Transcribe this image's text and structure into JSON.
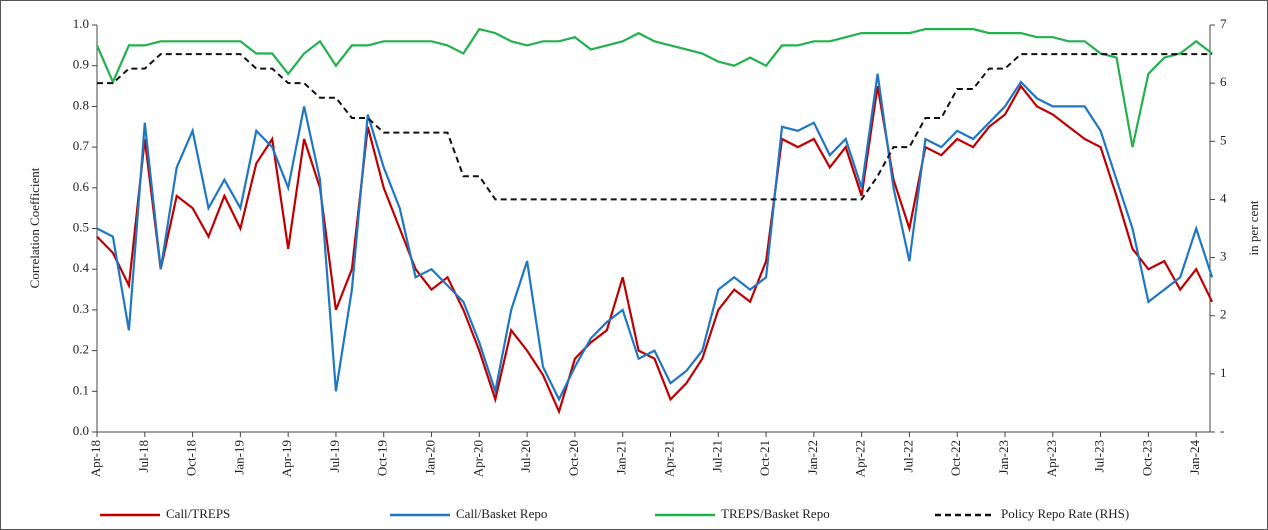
{
  "chart_data": {
    "type": "line",
    "categories": [
      "Apr-18",
      null,
      null,
      "Jul-18",
      null,
      null,
      "Oct-18",
      null,
      null,
      "Jan-19",
      null,
      null,
      "Apr-19",
      null,
      null,
      "Jul-19",
      null,
      null,
      "Oct-19",
      null,
      null,
      "Jan-20",
      null,
      null,
      "Apr-20",
      null,
      null,
      "Jul-20",
      null,
      null,
      "Oct-20",
      null,
      null,
      "Jan-21",
      null,
      null,
      "Apr-21",
      null,
      null,
      "Jul-21",
      null,
      null,
      "Oct-21",
      null,
      null,
      "Jan-22",
      null,
      null,
      "Apr-22",
      null,
      null,
      "Jul-22",
      null,
      null,
      "Oct-22",
      null,
      null,
      "Jan-23",
      null,
      null,
      "Apr-23",
      null,
      null,
      "Jul-23",
      null,
      null,
      "Oct-23",
      null,
      null,
      "Jan-24",
      null
    ],
    "series": [
      {
        "name": "Call/TREPS",
        "color": "#c00000",
        "values": [
          0.48,
          0.44,
          0.36,
          0.72,
          0.4,
          0.58,
          0.55,
          0.48,
          0.58,
          0.5,
          0.66,
          0.72,
          0.45,
          0.72,
          0.6,
          0.3,
          0.4,
          0.75,
          0.6,
          0.5,
          0.4,
          0.35,
          0.38,
          0.3,
          0.2,
          0.08,
          0.25,
          0.2,
          0.14,
          0.05,
          0.18,
          0.22,
          0.25,
          0.38,
          0.2,
          0.18,
          0.08,
          0.12,
          0.18,
          0.3,
          0.35,
          0.32,
          0.42,
          0.72,
          0.7,
          0.72,
          0.65,
          0.7,
          0.58,
          0.85,
          0.62,
          0.5,
          0.7,
          0.68,
          0.72,
          0.7,
          0.75,
          0.78,
          0.85,
          0.8,
          0.78,
          0.75,
          0.72,
          0.7,
          0.58,
          0.45,
          0.4,
          0.42,
          0.35,
          0.4,
          0.32
        ]
      },
      {
        "name": "Call/Basket Repo",
        "color": "#1f77c4",
        "values": [
          0.5,
          0.48,
          0.25,
          0.76,
          0.4,
          0.65,
          0.74,
          0.55,
          0.62,
          0.55,
          0.74,
          0.7,
          0.6,
          0.8,
          0.62,
          0.1,
          0.35,
          0.78,
          0.65,
          0.55,
          0.38,
          0.4,
          0.36,
          0.32,
          0.22,
          0.1,
          0.3,
          0.42,
          0.16,
          0.08,
          0.16,
          0.23,
          0.27,
          0.3,
          0.18,
          0.2,
          0.12,
          0.15,
          0.2,
          0.35,
          0.38,
          0.35,
          0.38,
          0.75,
          0.74,
          0.76,
          0.68,
          0.72,
          0.6,
          0.88,
          0.6,
          0.42,
          0.72,
          0.7,
          0.74,
          0.72,
          0.76,
          0.8,
          0.86,
          0.82,
          0.8,
          0.8,
          0.8,
          0.74,
          0.62,
          0.5,
          0.32,
          0.35,
          0.38,
          0.5,
          0.38
        ]
      },
      {
        "name": "TREPS/Basket Repo",
        "color": "#22b14c",
        "values": [
          0.95,
          0.86,
          0.95,
          0.95,
          0.96,
          0.96,
          0.96,
          0.96,
          0.96,
          0.96,
          0.93,
          0.93,
          0.88,
          0.93,
          0.96,
          0.9,
          0.95,
          0.95,
          0.96,
          0.96,
          0.96,
          0.96,
          0.95,
          0.93,
          0.99,
          0.98,
          0.96,
          0.95,
          0.96,
          0.96,
          0.97,
          0.94,
          0.95,
          0.96,
          0.98,
          0.96,
          0.95,
          0.94,
          0.93,
          0.91,
          0.9,
          0.92,
          0.9,
          0.95,
          0.95,
          0.96,
          0.96,
          0.97,
          0.98,
          0.98,
          0.98,
          0.98,
          0.99,
          0.99,
          0.99,
          0.99,
          0.98,
          0.98,
          0.98,
          0.97,
          0.97,
          0.96,
          0.96,
          0.93,
          0.92,
          0.7,
          0.88,
          0.92,
          0.93,
          0.96,
          0.93
        ]
      },
      {
        "name": "Policy Repo Rate (RHS)",
        "color": "#111111",
        "dash": true,
        "axis": "y2",
        "values": [
          6.0,
          6.0,
          6.25,
          6.25,
          6.5,
          6.5,
          6.5,
          6.5,
          6.5,
          6.5,
          6.25,
          6.25,
          6.0,
          6.0,
          5.75,
          5.75,
          5.4,
          5.4,
          5.15,
          5.15,
          5.15,
          5.15,
          5.15,
          4.4,
          4.4,
          4.0,
          4.0,
          4.0,
          4.0,
          4.0,
          4.0,
          4.0,
          4.0,
          4.0,
          4.0,
          4.0,
          4.0,
          4.0,
          4.0,
          4.0,
          4.0,
          4.0,
          4.0,
          4.0,
          4.0,
          4.0,
          4.0,
          4.0,
          4.0,
          4.4,
          4.9,
          4.9,
          5.4,
          5.4,
          5.9,
          5.9,
          6.25,
          6.25,
          6.5,
          6.5,
          6.5,
          6.5,
          6.5,
          6.5,
          6.5,
          6.5,
          6.5,
          6.5,
          6.5,
          6.5,
          6.5
        ]
      }
    ],
    "y_label": "Correlation Coefficient",
    "y2_label": "in per cent",
    "ylim": [
      0,
      1
    ],
    "yticks": [
      {
        "value": 0,
        "label": "0.0"
      },
      0.1,
      0.2,
      0.3,
      0.4,
      0.5,
      0.6,
      0.7,
      0.8,
      0.9,
      {
        "value": 1,
        "label": "1.0"
      }
    ],
    "y2lim": [
      0,
      7
    ],
    "y2ticks": [
      {
        "value": 0,
        "label": "-"
      },
      1,
      2,
      3,
      4,
      5,
      6,
      7
    ],
    "legend": "bottom"
  }
}
